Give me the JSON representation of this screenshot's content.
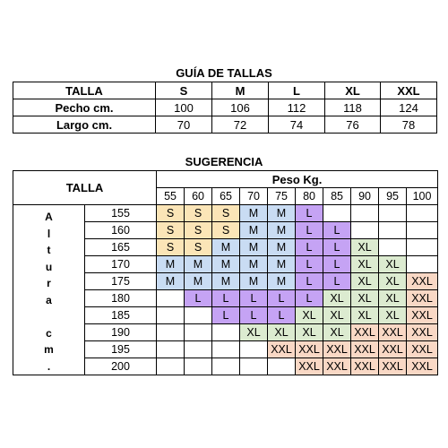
{
  "guide": {
    "title": "GUÍA DE TALLAS",
    "header_label": "TALLA",
    "sizes": [
      "S",
      "M",
      "L",
      "XL",
      "XXL"
    ],
    "rows": [
      {
        "label": "Pecho cm.",
        "values": [
          "100",
          "106",
          "112",
          "118",
          "124"
        ]
      },
      {
        "label": "Largo cm.",
        "values": [
          "70",
          "72",
          "74",
          "76",
          "78"
        ]
      }
    ]
  },
  "suggestion": {
    "title": "SUGERENCIA",
    "talla_label": "TALLA",
    "peso_label": "Peso Kg.",
    "altura_letters": [
      "A",
      "l",
      "t",
      "u",
      "r",
      "a",
      "",
      "c",
      "m",
      "."
    ],
    "weights": [
      "55",
      "60",
      "65",
      "70",
      "75",
      "80",
      "85",
      "90",
      "95",
      "100"
    ],
    "heights": [
      "155",
      "160",
      "165",
      "170",
      "175",
      "180",
      "185",
      "190",
      "195",
      "200"
    ],
    "grid": [
      [
        "S",
        "S",
        "S",
        "M",
        "M",
        "L",
        "",
        "",
        "",
        ""
      ],
      [
        "S",
        "S",
        "S",
        "M",
        "M",
        "L",
        "L",
        "",
        "",
        ""
      ],
      [
        "S",
        "S",
        "M",
        "M",
        "M",
        "L",
        "L",
        "XL",
        "",
        ""
      ],
      [
        "M",
        "M",
        "M",
        "M",
        "M",
        "L",
        "L",
        "XL",
        "XL",
        ""
      ],
      [
        "M",
        "M",
        "M",
        "M",
        "M",
        "L",
        "L",
        "XL",
        "XL",
        "XXL"
      ],
      [
        "",
        "L",
        "L",
        "L",
        "L",
        "L",
        "XL",
        "XL",
        "XL",
        "XXL"
      ],
      [
        "",
        "",
        "L",
        "L",
        "L",
        "XL",
        "XL",
        "XL",
        "XL",
        "XXL"
      ],
      [
        "",
        "",
        "",
        "XL",
        "XL",
        "XL",
        "XL",
        "XXL",
        "XXL",
        "XXL"
      ],
      [
        "",
        "",
        "",
        "",
        "XXL",
        "XXL",
        "XXL",
        "XXL",
        "XXL",
        "XXL"
      ],
      [
        "",
        "",
        "",
        "",
        "",
        "XXL",
        "XXL",
        "XXL",
        "XXL",
        "XXL"
      ]
    ],
    "colors": {
      "S": "#fbe5b7",
      "M": "#c9dcf3",
      "L": "#c5a3f4",
      "XL": "#dcebd0",
      "XXL": "#f9d8c5"
    }
  }
}
